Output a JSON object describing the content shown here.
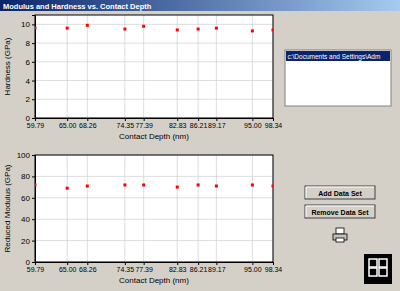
{
  "window": {
    "title": "Modulus and Hardness vs. Contact Depth",
    "file_list": [
      "c:\\Documents and Settings\\Adm"
    ],
    "buttons": [
      "Add Data Set",
      "Remove Data Set"
    ]
  },
  "chart_data": [
    {
      "type": "scatter",
      "x_label": "Contact Depth (nm)",
      "y_label": "Hardness (GPa)",
      "x": [
        59.79,
        65.0,
        68.26,
        74.35,
        77.39,
        82.83,
        86.21,
        89.17,
        95.0,
        98.34
      ],
      "values": [
        9.6,
        9.6,
        9.9,
        9.5,
        9.8,
        9.4,
        9.5,
        9.6,
        9.3,
        9.4
      ],
      "color": "#ff0000",
      "marker": "square",
      "xlim": [
        59.79,
        98.34
      ],
      "xticks": [
        59.79,
        {
          "value": 65,
          "label": "65.00"
        },
        68.26,
        74.35,
        77.39,
        82.83,
        86.21,
        89.17,
        {
          "value": 95,
          "label": "95.00"
        },
        98.34
      ],
      "ylim": [
        0,
        11
      ],
      "yticks": [
        0,
        2,
        4,
        6,
        8,
        10
      ],
      "grid": true
    },
    {
      "type": "scatter",
      "x_label": "Contact Depth (nm)",
      "y_label": "Reduced Modulus (GPa)",
      "x": [
        59.79,
        65.0,
        68.26,
        74.35,
        77.39,
        82.83,
        86.21,
        89.17,
        95.0,
        98.34
      ],
      "values": [
        72,
        69,
        71,
        72,
        72,
        70,
        72,
        71,
        72,
        71
      ],
      "color": "#ff0000",
      "marker": "square",
      "xlim": [
        59.79,
        98.34
      ],
      "xticks": [
        59.79,
        {
          "value": 65,
          "label": "65.00"
        },
        68.26,
        74.35,
        77.39,
        82.83,
        86.21,
        89.17,
        {
          "value": 95,
          "label": "95.00"
        },
        98.34
      ],
      "ylim": [
        0,
        100
      ],
      "yticks": [
        0,
        20,
        40,
        60,
        80,
        100
      ],
      "grid": true
    }
  ]
}
